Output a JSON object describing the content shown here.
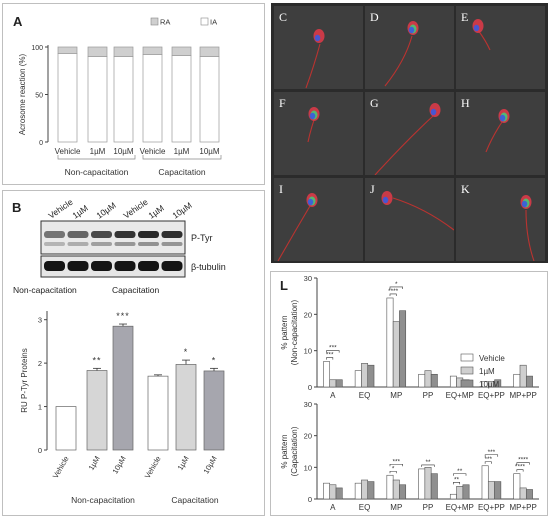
{
  "panel_a": {
    "label": "A",
    "legend": [
      "RA",
      "IA"
    ],
    "ylabel": "Acrosome reaction (%)",
    "yticks": [
      "0",
      "50",
      "100"
    ],
    "groups": [
      "Non-capacitation",
      "Capacitation"
    ],
    "doses": [
      "Vehicle",
      "1µM",
      "10µM"
    ]
  },
  "panel_b": {
    "label": "B",
    "doses": [
      "Vehicle",
      "1µM",
      "10µM",
      "Vehicle",
      "1µM",
      "10µM"
    ],
    "blot_labels": [
      "P-Tyr",
      "β-tubulin"
    ],
    "groups": [
      "Non-capacitation",
      "Capacitation"
    ]
  },
  "micro": {
    "letters": [
      "C",
      "D",
      "E",
      "F",
      "G",
      "H",
      "I",
      "J",
      "K"
    ],
    "stains": {
      "head_red": "#d93a48",
      "midpiece_green": "#3ed07a",
      "nucleus_blue": "#3a5ae0",
      "tail": "#c8322f"
    }
  },
  "panel_l": {
    "label": "L",
    "legend": [
      "Vehicle",
      "1µM",
      "10µM"
    ],
    "categories": [
      "A",
      "EQ",
      "MP",
      "PP",
      "EQ+MP",
      "EQ+PP",
      "MP+PP"
    ],
    "yticks": [
      "0",
      "10",
      "20",
      "30"
    ],
    "ylabel_top": [
      "% pattern",
      "(Non-capacitation)"
    ],
    "ylabel_bottom": [
      "% pattern",
      "(Capacitation)"
    ]
  },
  "chart_data": [
    {
      "type": "bar",
      "id": "A",
      "stacked": true,
      "categories": [
        "Vehicle",
        "1µM",
        "10µM",
        "Vehicle",
        "1µM",
        "10µM"
      ],
      "groups": [
        "Non-capacitation",
        "Capacitation"
      ],
      "series": [
        {
          "name": "IA",
          "values": [
            93,
            90,
            90,
            92,
            91,
            90
          ]
        },
        {
          "name": "RA",
          "values": [
            7,
            10,
            10,
            8,
            9,
            10
          ]
        }
      ],
      "ylabel": "Acrosome reaction (%)",
      "ylim": [
        0,
        100
      ],
      "legend": "top-right",
      "colors": {
        "RA": "#cfcfcf",
        "IA": "#ffffff"
      }
    },
    {
      "type": "bar",
      "id": "B",
      "categories": [
        "Vehicle",
        "1µM",
        "10µM",
        "Vehicle",
        "1µM",
        "10µM"
      ],
      "groups": [
        "Non-capacitation",
        "Capacitation"
      ],
      "values": [
        1.0,
        1.83,
        2.85,
        1.7,
        1.97,
        1.82
      ],
      "errors": [
        0,
        0.05,
        0.05,
        0.03,
        0.1,
        0.06
      ],
      "significance": [
        "",
        "**",
        "***",
        "",
        "*",
        "*"
      ],
      "ylabel": "RU P-Tyr Proteins",
      "yticks": [
        0,
        1,
        2,
        3
      ],
      "ylim": [
        0,
        3.2
      ],
      "colors": [
        "#ffffff",
        "#d6d6d6",
        "#a6a6ae",
        "#ffffff",
        "#d6d6d6",
        "#a6a6ae"
      ]
    },
    {
      "type": "bar",
      "id": "L-non-capacitation",
      "categories": [
        "A",
        "EQ",
        "MP",
        "PP",
        "EQ+MP",
        "EQ+PP",
        "MP+PP"
      ],
      "series": [
        {
          "name": "Vehicle",
          "values": [
            7,
            4.5,
            24.5,
            3.5,
            3,
            1.5,
            3.5
          ]
        },
        {
          "name": "1µM",
          "values": [
            2,
            6.5,
            18,
            4.5,
            2.5,
            1.5,
            6
          ]
        },
        {
          "name": "10µM",
          "values": [
            2,
            6,
            21,
            3.5,
            2,
            2,
            3
          ]
        }
      ],
      "ylabel": "% pattern (Non-capacitation)",
      "ylim": [
        0,
        30
      ],
      "legend": "top-right",
      "significance": [
        {
          "category": "A",
          "pair": [
            "Vehicle",
            "1µM"
          ],
          "label": "***"
        },
        {
          "category": "A",
          "pair": [
            "Vehicle",
            "10µM"
          ],
          "label": "***"
        },
        {
          "category": "MP",
          "pair": [
            "Vehicle",
            "1µM"
          ],
          "label": "****"
        },
        {
          "category": "MP",
          "pair": [
            "Vehicle",
            "10µM"
          ],
          "label": "*"
        }
      ]
    },
    {
      "type": "bar",
      "id": "L-capacitation",
      "categories": [
        "A",
        "EQ",
        "MP",
        "PP",
        "EQ+MP",
        "EQ+PP",
        "MP+PP"
      ],
      "series": [
        {
          "name": "Vehicle",
          "values": [
            5,
            5,
            7.5,
            9.5,
            1.5,
            10.5,
            8
          ]
        },
        {
          "name": "1µM",
          "values": [
            4.5,
            6,
            6,
            10,
            4,
            5.5,
            3.5
          ]
        },
        {
          "name": "10µM",
          "values": [
            3.5,
            5.5,
            4.5,
            8,
            4.5,
            5.5,
            3
          ]
        }
      ],
      "ylabel": "% pattern (Capacitation)",
      "ylim": [
        0,
        30
      ],
      "significance": [
        {
          "category": "MP",
          "pair": [
            "Vehicle",
            "1µM"
          ],
          "label": "*"
        },
        {
          "category": "MP",
          "pair": [
            "Vehicle",
            "10µM"
          ],
          "label": "***"
        },
        {
          "category": "PP",
          "pair": [
            "Vehicle",
            "10µM"
          ],
          "label": "**"
        },
        {
          "category": "EQ+MP",
          "pair": [
            "Vehicle",
            "1µM"
          ],
          "label": "**"
        },
        {
          "category": "EQ+MP",
          "pair": [
            "Vehicle",
            "10µM"
          ],
          "label": "**"
        },
        {
          "category": "EQ+PP",
          "pair": [
            "Vehicle",
            "1µM"
          ],
          "label": "***"
        },
        {
          "category": "EQ+PP",
          "pair": [
            "Vehicle",
            "10µM"
          ],
          "label": "***"
        },
        {
          "category": "MP+PP",
          "pair": [
            "Vehicle",
            "1µM"
          ],
          "label": "****"
        },
        {
          "category": "MP+PP",
          "pair": [
            "Vehicle",
            "10µM"
          ],
          "label": "****"
        }
      ]
    }
  ]
}
